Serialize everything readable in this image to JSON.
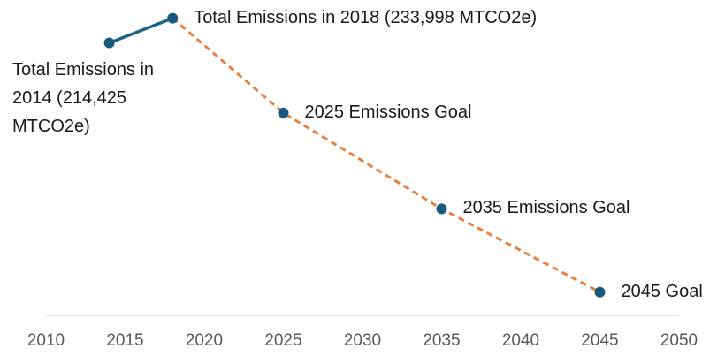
{
  "chart_data": {
    "type": "line",
    "x": [
      2014,
      2018,
      2025,
      2035,
      2045
    ],
    "values": [
      214425,
      233998,
      159000,
      83000,
      17000
    ],
    "point_labels": [
      "Total Emissions in 2014 (214,425 MTCO2e)",
      "Total Emissions in 2018 (233,998 MTCO2e)",
      "2025 Emissions Goal",
      "2035 Emissions Goal",
      "2045 Goal"
    ],
    "color": "#1f6384",
    "marker_color": "#175a7d",
    "projection_color": "#e8803f",
    "projection_start": 2018,
    "xlim": [
      2010,
      2050
    ],
    "xticks": [
      2010,
      2015,
      2020,
      2025,
      2030,
      2035,
      2040,
      2045,
      2050
    ],
    "ylim": [
      0,
      240000
    ]
  }
}
